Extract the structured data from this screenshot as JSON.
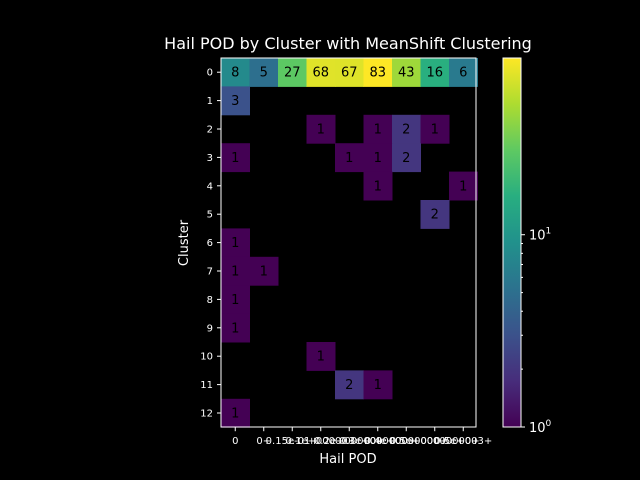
{
  "chart_data": {
    "type": "heatmap",
    "title": "Hail POD by Cluster with MeanShift Clustering",
    "xlabel": "Hail POD",
    "ylabel": "Cluster",
    "x_tick_labels": [
      "0",
      "0+",
      "0.15e-01+",
      "0.1e+00000+",
      "0.2e+00000+",
      "0.3e+000000+",
      "0.4e+0000000+",
      "0.5e+00000000+",
      "0.5e+003+"
    ],
    "y_tick_labels": [
      "0",
      "1",
      "2",
      "3",
      "4",
      "5",
      "6",
      "7",
      "8",
      "9",
      "10",
      "11",
      "12"
    ],
    "values": [
      [
        8,
        5,
        27,
        68,
        67,
        83,
        43,
        16,
        6
      ],
      [
        3,
        null,
        null,
        null,
        null,
        null,
        null,
        null,
        null
      ],
      [
        null,
        null,
        null,
        1,
        null,
        1,
        2,
        1,
        null
      ],
      [
        1,
        null,
        null,
        null,
        1,
        1,
        2,
        null,
        null
      ],
      [
        null,
        null,
        null,
        null,
        null,
        1,
        null,
        null,
        1
      ],
      [
        null,
        null,
        null,
        null,
        null,
        null,
        null,
        2,
        null
      ],
      [
        1,
        null,
        null,
        null,
        null,
        null,
        null,
        null,
        null
      ],
      [
        1,
        1,
        null,
        null,
        null,
        null,
        null,
        null,
        null
      ],
      [
        1,
        null,
        null,
        null,
        null,
        null,
        null,
        null,
        null
      ],
      [
        1,
        null,
        null,
        null,
        null,
        null,
        null,
        null,
        null
      ],
      [
        null,
        null,
        null,
        1,
        null,
        null,
        null,
        null,
        null
      ],
      [
        null,
        null,
        null,
        null,
        2,
        1,
        null,
        null,
        null
      ],
      [
        1,
        null,
        null,
        null,
        null,
        null,
        null,
        null,
        null
      ]
    ],
    "colorscale": "viridis",
    "color_scale_type": "log",
    "colorbar_range": [
      1,
      83
    ],
    "colorbar_ticks": [
      {
        "value": 1,
        "base": "10",
        "exp": "0"
      },
      {
        "value": 10,
        "base": "10",
        "exp": "1"
      }
    ]
  }
}
